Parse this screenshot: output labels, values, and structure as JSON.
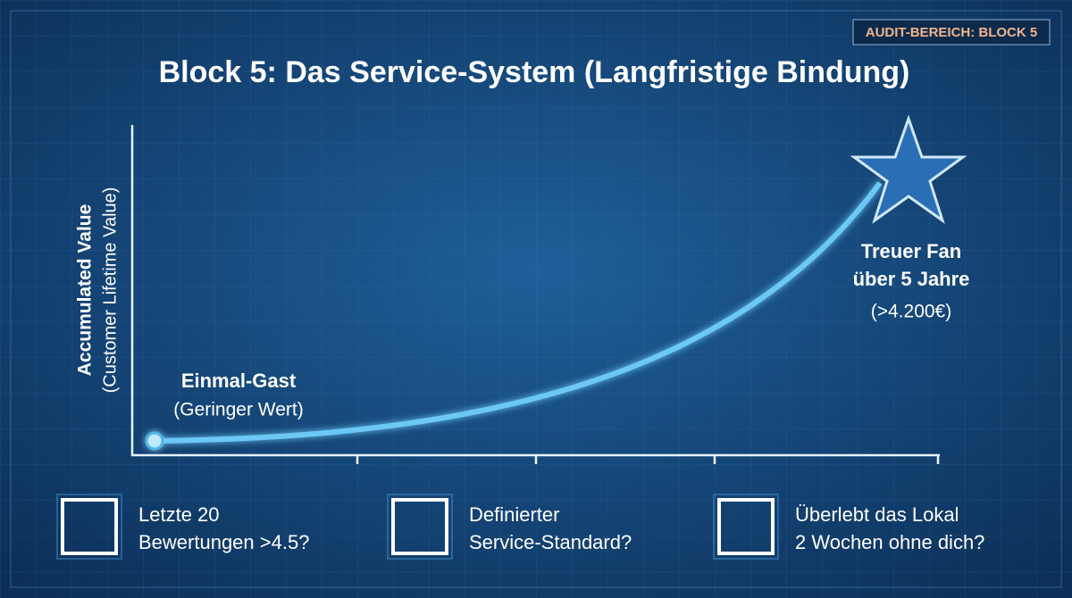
{
  "badge": "AUDIT-BEREICH: BLOCK 5",
  "title": "Block 5: Das Service-System (Langfristige Bindung)",
  "y_axis": {
    "label": "Accumulated Value",
    "sublabel": "(Customer Lifetime Value)"
  },
  "start_point": {
    "label": "Einmal-Gast",
    "note": "(Geringer Wert)"
  },
  "end_point": {
    "lines": [
      "Treuer Fan",
      "über 5 Jahre"
    ],
    "note": "(>4.200€)"
  },
  "checklist": [
    {
      "lines": [
        "Letzte 20",
        "Bewertungen >4.5?"
      ]
    },
    {
      "lines": [
        "Definierter",
        "Service-Standard?"
      ]
    },
    {
      "lines": [
        "Überlebt das Lokal",
        "2 Wochen ohne dich?"
      ]
    }
  ]
}
